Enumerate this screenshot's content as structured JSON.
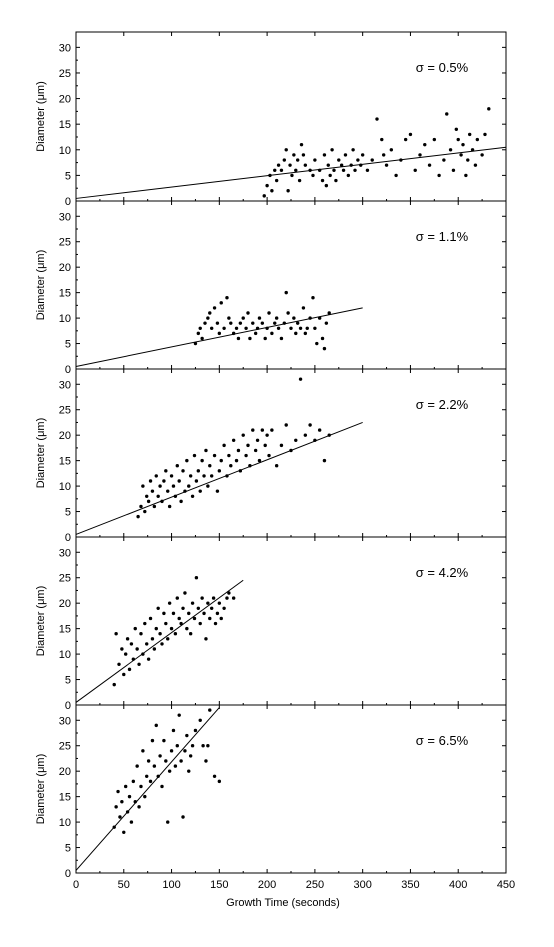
{
  "chart_data": {
    "type": "scatter",
    "xlabel": "Growth Time (seconds)",
    "ylabel": "Diameter (μm)",
    "xlim": [
      0,
      450
    ],
    "ylim": [
      0,
      33
    ],
    "x_ticks": [
      "0",
      "50",
      "100",
      "150",
      "200",
      "250",
      "300",
      "350",
      "400",
      "450"
    ],
    "y_ticks": [
      "0",
      "5",
      "10",
      "15",
      "20",
      "25",
      "30"
    ],
    "grid": false,
    "panels": [
      {
        "label": "σ = 0.5%",
        "fit": {
          "x": [
            0,
            450
          ],
          "y": [
            0.5,
            10.5
          ]
        },
        "points": [
          [
            197,
            1
          ],
          [
            200,
            3
          ],
          [
            203,
            5
          ],
          [
            205,
            2
          ],
          [
            208,
            6
          ],
          [
            210,
            4
          ],
          [
            212,
            7
          ],
          [
            215,
            6
          ],
          [
            218,
            8
          ],
          [
            220,
            10
          ],
          [
            222,
            2
          ],
          [
            224,
            7
          ],
          [
            226,
            5
          ],
          [
            228,
            9
          ],
          [
            230,
            6
          ],
          [
            232,
            8
          ],
          [
            234,
            4
          ],
          [
            236,
            11
          ],
          [
            238,
            9
          ],
          [
            240,
            7
          ],
          [
            245,
            6
          ],
          [
            248,
            5
          ],
          [
            250,
            8
          ],
          [
            255,
            6
          ],
          [
            258,
            4
          ],
          [
            260,
            9
          ],
          [
            262,
            3
          ],
          [
            264,
            7
          ],
          [
            266,
            5
          ],
          [
            268,
            10
          ],
          [
            270,
            6
          ],
          [
            272,
            4
          ],
          [
            275,
            8
          ],
          [
            278,
            7
          ],
          [
            280,
            6
          ],
          [
            282,
            9
          ],
          [
            285,
            5
          ],
          [
            288,
            7
          ],
          [
            290,
            10
          ],
          [
            292,
            6
          ],
          [
            295,
            8
          ],
          [
            298,
            7
          ],
          [
            300,
            9
          ],
          [
            305,
            6
          ],
          [
            310,
            8
          ],
          [
            315,
            16
          ],
          [
            320,
            12
          ],
          [
            322,
            9
          ],
          [
            325,
            7
          ],
          [
            330,
            10
          ],
          [
            335,
            5
          ],
          [
            340,
            8
          ],
          [
            345,
            12
          ],
          [
            350,
            13
          ],
          [
            355,
            6
          ],
          [
            360,
            9
          ],
          [
            365,
            11
          ],
          [
            370,
            7
          ],
          [
            375,
            12
          ],
          [
            380,
            5
          ],
          [
            385,
            8
          ],
          [
            388,
            17
          ],
          [
            392,
            10
          ],
          [
            395,
            6
          ],
          [
            398,
            14
          ],
          [
            400,
            12
          ],
          [
            403,
            9
          ],
          [
            405,
            11
          ],
          [
            408,
            5
          ],
          [
            410,
            8
          ],
          [
            412,
            13
          ],
          [
            415,
            10
          ],
          [
            418,
            7
          ],
          [
            420,
            12
          ],
          [
            425,
            9
          ],
          [
            428,
            13
          ],
          [
            432,
            18
          ]
        ]
      },
      {
        "label": "σ = 1.1%",
        "fit": {
          "x": [
            0,
            300
          ],
          "y": [
            0.5,
            12
          ]
        },
        "points": [
          [
            125,
            5
          ],
          [
            128,
            7
          ],
          [
            130,
            8
          ],
          [
            132,
            6
          ],
          [
            135,
            9
          ],
          [
            138,
            10
          ],
          [
            140,
            11
          ],
          [
            142,
            8
          ],
          [
            145,
            12
          ],
          [
            148,
            9
          ],
          [
            150,
            7
          ],
          [
            152,
            13
          ],
          [
            155,
            8
          ],
          [
            158,
            14
          ],
          [
            160,
            10
          ],
          [
            162,
            9
          ],
          [
            165,
            7
          ],
          [
            168,
            8
          ],
          [
            170,
            6
          ],
          [
            172,
            9
          ],
          [
            175,
            10
          ],
          [
            178,
            8
          ],
          [
            180,
            11
          ],
          [
            182,
            6
          ],
          [
            185,
            9
          ],
          [
            188,
            7
          ],
          [
            190,
            8
          ],
          [
            192,
            10
          ],
          [
            195,
            9
          ],
          [
            198,
            6
          ],
          [
            200,
            8
          ],
          [
            202,
            11
          ],
          [
            205,
            7
          ],
          [
            208,
            9
          ],
          [
            210,
            10
          ],
          [
            212,
            8
          ],
          [
            215,
            6
          ],
          [
            218,
            9
          ],
          [
            220,
            15
          ],
          [
            222,
            11
          ],
          [
            225,
            8
          ],
          [
            228,
            10
          ],
          [
            230,
            7
          ],
          [
            232,
            9
          ],
          [
            235,
            8
          ],
          [
            238,
            12
          ],
          [
            240,
            7
          ],
          [
            242,
            8
          ],
          [
            245,
            10
          ],
          [
            248,
            14
          ],
          [
            250,
            8
          ],
          [
            252,
            5
          ],
          [
            255,
            10
          ],
          [
            258,
            6
          ],
          [
            260,
            4
          ],
          [
            262,
            9
          ],
          [
            265,
            11
          ]
        ]
      },
      {
        "label": "σ = 2.2%",
        "fit": {
          "x": [
            0,
            300
          ],
          "y": [
            0.5,
            22.5
          ]
        },
        "points": [
          [
            65,
            4
          ],
          [
            68,
            6
          ],
          [
            70,
            10
          ],
          [
            72,
            5
          ],
          [
            74,
            8
          ],
          [
            76,
            7
          ],
          [
            78,
            11
          ],
          [
            80,
            9
          ],
          [
            82,
            6
          ],
          [
            84,
            12
          ],
          [
            86,
            8
          ],
          [
            88,
            10
          ],
          [
            90,
            7
          ],
          [
            92,
            11
          ],
          [
            94,
            13
          ],
          [
            96,
            9
          ],
          [
            98,
            6
          ],
          [
            100,
            12
          ],
          [
            102,
            10
          ],
          [
            104,
            8
          ],
          [
            106,
            14
          ],
          [
            108,
            11
          ],
          [
            110,
            7
          ],
          [
            112,
            13
          ],
          [
            114,
            9
          ],
          [
            116,
            15
          ],
          [
            118,
            10
          ],
          [
            120,
            12
          ],
          [
            122,
            8
          ],
          [
            124,
            16
          ],
          [
            126,
            11
          ],
          [
            128,
            13
          ],
          [
            130,
            9
          ],
          [
            132,
            15
          ],
          [
            134,
            12
          ],
          [
            136,
            17
          ],
          [
            138,
            10
          ],
          [
            140,
            14
          ],
          [
            142,
            12
          ],
          [
            145,
            16
          ],
          [
            148,
            9
          ],
          [
            150,
            13
          ],
          [
            152,
            15
          ],
          [
            155,
            18
          ],
          [
            158,
            12
          ],
          [
            160,
            16
          ],
          [
            162,
            14
          ],
          [
            165,
            19
          ],
          [
            168,
            15
          ],
          [
            170,
            17
          ],
          [
            172,
            13
          ],
          [
            175,
            20
          ],
          [
            178,
            16
          ],
          [
            180,
            18
          ],
          [
            182,
            14
          ],
          [
            185,
            21
          ],
          [
            188,
            17
          ],
          [
            190,
            19
          ],
          [
            192,
            15
          ],
          [
            195,
            21
          ],
          [
            198,
            18
          ],
          [
            200,
            20
          ],
          [
            202,
            16
          ],
          [
            205,
            21
          ],
          [
            210,
            14
          ],
          [
            215,
            18
          ],
          [
            220,
            22
          ],
          [
            225,
            17
          ],
          [
            230,
            19
          ],
          [
            235,
            31
          ],
          [
            240,
            20
          ],
          [
            245,
            22
          ],
          [
            250,
            19
          ],
          [
            255,
            21
          ],
          [
            260,
            15
          ],
          [
            265,
            20
          ]
        ]
      },
      {
        "label": "σ = 4.2%",
        "fit": {
          "x": [
            0,
            175
          ],
          "y": [
            0.5,
            24.5
          ]
        },
        "points": [
          [
            40,
            4
          ],
          [
            42,
            14
          ],
          [
            45,
            8
          ],
          [
            48,
            11
          ],
          [
            50,
            6
          ],
          [
            52,
            10
          ],
          [
            54,
            13
          ],
          [
            56,
            7
          ],
          [
            58,
            12
          ],
          [
            60,
            9
          ],
          [
            62,
            15
          ],
          [
            64,
            11
          ],
          [
            66,
            8
          ],
          [
            68,
            14
          ],
          [
            70,
            10
          ],
          [
            72,
            16
          ],
          [
            74,
            12
          ],
          [
            76,
            9
          ],
          [
            78,
            17
          ],
          [
            80,
            13
          ],
          [
            82,
            11
          ],
          [
            84,
            15
          ],
          [
            86,
            19
          ],
          [
            88,
            14
          ],
          [
            90,
            12
          ],
          [
            92,
            18
          ],
          [
            94,
            16
          ],
          [
            96,
            13
          ],
          [
            98,
            20
          ],
          [
            100,
            15
          ],
          [
            102,
            18
          ],
          [
            104,
            14
          ],
          [
            106,
            21
          ],
          [
            108,
            17
          ],
          [
            110,
            16
          ],
          [
            112,
            19
          ],
          [
            114,
            22
          ],
          [
            116,
            15
          ],
          [
            118,
            18
          ],
          [
            120,
            14
          ],
          [
            122,
            20
          ],
          [
            124,
            17
          ],
          [
            126,
            25
          ],
          [
            128,
            19
          ],
          [
            130,
            16
          ],
          [
            132,
            21
          ],
          [
            134,
            18
          ],
          [
            136,
            13
          ],
          [
            138,
            20
          ],
          [
            140,
            17
          ],
          [
            142,
            19
          ],
          [
            144,
            21
          ],
          [
            146,
            16
          ],
          [
            148,
            18
          ],
          [
            150,
            20
          ],
          [
            152,
            17
          ],
          [
            155,
            19
          ],
          [
            158,
            21
          ],
          [
            160,
            22
          ],
          [
            165,
            21
          ]
        ]
      },
      {
        "label": "σ = 6.5%",
        "fit": {
          "x": [
            0,
            150
          ],
          "y": [
            0.5,
            32.5
          ]
        },
        "points": [
          [
            40,
            9
          ],
          [
            42,
            13
          ],
          [
            44,
            16
          ],
          [
            46,
            11
          ],
          [
            48,
            14
          ],
          [
            50,
            8
          ],
          [
            52,
            17
          ],
          [
            54,
            12
          ],
          [
            56,
            15
          ],
          [
            58,
            10
          ],
          [
            60,
            18
          ],
          [
            62,
            14
          ],
          [
            64,
            21
          ],
          [
            66,
            13
          ],
          [
            68,
            17
          ],
          [
            70,
            24
          ],
          [
            72,
            15
          ],
          [
            74,
            19
          ],
          [
            76,
            22
          ],
          [
            78,
            18
          ],
          [
            80,
            26
          ],
          [
            82,
            21
          ],
          [
            84,
            29
          ],
          [
            86,
            19
          ],
          [
            88,
            23
          ],
          [
            90,
            17
          ],
          [
            92,
            26
          ],
          [
            94,
            22
          ],
          [
            96,
            10
          ],
          [
            98,
            20
          ],
          [
            100,
            24
          ],
          [
            102,
            28
          ],
          [
            104,
            21
          ],
          [
            106,
            25
          ],
          [
            108,
            31
          ],
          [
            110,
            22
          ],
          [
            112,
            11
          ],
          [
            114,
            24
          ],
          [
            116,
            27
          ],
          [
            118,
            20
          ],
          [
            120,
            23
          ],
          [
            122,
            25
          ],
          [
            125,
            28
          ],
          [
            130,
            30
          ],
          [
            133,
            25
          ],
          [
            136,
            22
          ],
          [
            138,
            25
          ],
          [
            140,
            32
          ],
          [
            145,
            19
          ],
          [
            150,
            18
          ]
        ]
      }
    ]
  }
}
